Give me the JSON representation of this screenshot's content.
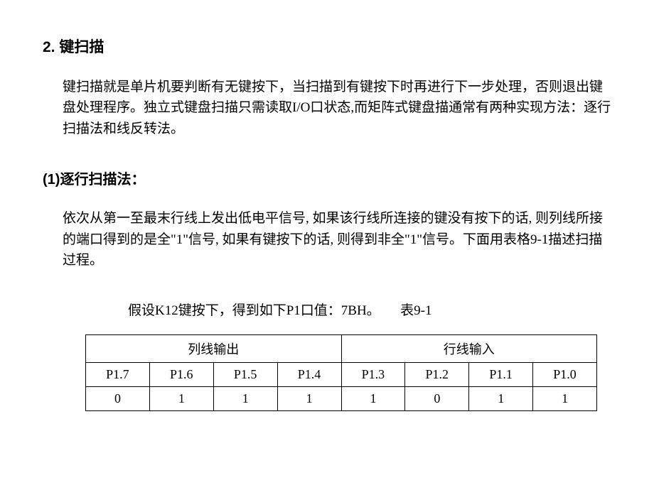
{
  "heading1": "2. 键扫描",
  "para1": "键扫描就是单片机要判断有无键按下，当扫描到有键按下时再进行下一步处理，否则退出键盘处理程序。独立式键盘扫描只需读取I/O口状态,而矩阵式键盘描通常有两种实现方法：逐行扫描法和线反转法。",
  "heading2": "(1)逐行扫描法：",
  "para2": "依次从第一至最末行线上发出低电平信号, 如果该行线所连接的键没有按下的话, 则列线所接的端口得到的是全\"1\"信号, 如果有键按下的话, 则得到非全\"1\"信号。下面用表格9-1描述扫描过程。",
  "caption": "假设K12键按下，得到如下P1口值：7BH。　　表9-1",
  "table": {
    "group_headers": [
      "列线输出",
      "行线输入"
    ],
    "col_headers": [
      "P1.7",
      "P1.6",
      "P1.5",
      "P1.4",
      "P1.3",
      "P1.2",
      "P1.1",
      "P1.0"
    ],
    "row": [
      "0",
      "1",
      "1",
      "1",
      "1",
      "0",
      "1",
      "1"
    ]
  }
}
